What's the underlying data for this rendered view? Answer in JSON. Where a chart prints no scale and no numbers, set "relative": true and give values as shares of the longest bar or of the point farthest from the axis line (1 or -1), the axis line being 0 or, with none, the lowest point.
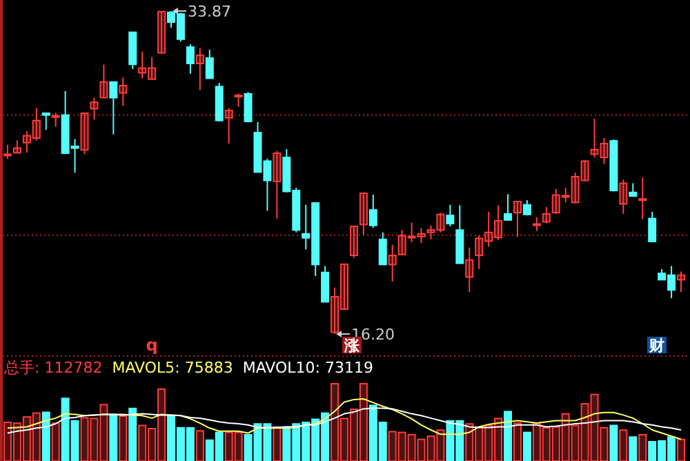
{
  "chart_data": [
    {
      "type": "candlestick",
      "categories": [
        null,
        null,
        null,
        null,
        null,
        null,
        null,
        null,
        null,
        null,
        null,
        null,
        null,
        null,
        null,
        null,
        null,
        null,
        null,
        null,
        null,
        null,
        null,
        null,
        null,
        null,
        null,
        null,
        null,
        null,
        null,
        null,
        null,
        null,
        null,
        null,
        null,
        null,
        null,
        null,
        null,
        null,
        null,
        null,
        null,
        null,
        null,
        null,
        null,
        null,
        null,
        null,
        null,
        null,
        null,
        null,
        null,
        null,
        null,
        null,
        null,
        null,
        null,
        null,
        null,
        null,
        null,
        null,
        null,
        null,
        null
      ],
      "ohlc": [
        [
          25.96,
          26.54,
          25.79,
          26.04
        ],
        [
          26.11,
          26.8,
          26.09,
          26.37
        ],
        [
          26.67,
          27.3,
          26.12,
          27.05
        ],
        [
          26.92,
          28.56,
          26.79,
          27.88
        ],
        [
          28.28,
          28.28,
          27.37,
          28.18
        ],
        [
          28.12,
          28.3,
          27.55,
          28.14
        ],
        [
          28.18,
          29.49,
          26.04,
          26.09
        ],
        [
          26.47,
          26.87,
          25.03,
          26.37
        ],
        [
          26.27,
          28.28,
          26.04,
          28.28
        ],
        [
          28.53,
          29.13,
          27.93,
          28.88
        ],
        [
          29.13,
          30.94,
          29.13,
          29.99
        ],
        [
          29.99,
          29.99,
          27.12,
          29.13
        ],
        [
          29.39,
          30.24,
          28.68,
          29.79
        ],
        [
          32.71,
          32.71,
          30.7,
          30.95
        ],
        [
          30.49,
          31.65,
          30.19,
          30.75
        ],
        [
          30.14,
          31.35,
          30.14,
          30.75
        ],
        [
          31.58,
          33.84,
          31.58,
          33.84
        ],
        [
          33.8,
          33.87,
          32.96,
          33.26
        ],
        [
          33.71,
          33.77,
          32.2,
          32.33
        ],
        [
          31.9,
          32.05,
          30.44,
          31.0
        ],
        [
          31.0,
          31.83,
          29.54,
          31.45
        ],
        [
          31.3,
          31.75,
          30.19,
          30.19
        ],
        [
          29.74,
          29.94,
          27.83,
          27.88
        ],
        [
          28.03,
          28.56,
          26.62,
          28.43
        ],
        [
          29.23,
          29.36,
          28.63,
          29.26
        ],
        [
          29.34,
          29.44,
          27.78,
          27.83
        ],
        [
          27.22,
          27.8,
          25.06,
          25.06
        ],
        [
          25.66,
          25.79,
          22.94,
          24.6
        ],
        [
          24.55,
          26.22,
          22.51,
          26.09
        ],
        [
          25.86,
          26.32,
          23.95,
          24.0
        ],
        [
          24.05,
          24.2,
          21.76,
          21.89
        ],
        [
          21.68,
          23.27,
          20.83,
          21.46
        ],
        [
          23.37,
          23.37,
          19.37,
          20.0
        ],
        [
          19.57,
          19.92,
          17.96,
          17.96
        ],
        [
          16.3,
          18.74,
          16.2,
          18.24
        ],
        [
          17.56,
          20.02,
          17.51,
          20.02
        ],
        [
          20.5,
          22.09,
          20.37,
          22.09
        ],
        [
          22.19,
          23.95,
          21.63,
          23.9
        ],
        [
          22.99,
          23.82,
          22.01,
          22.14
        ],
        [
          21.38,
          21.76,
          20.0,
          20.0
        ],
        [
          20.0,
          21.08,
          19.07,
          20.5
        ],
        [
          20.55,
          21.89,
          20.55,
          21.58
        ],
        [
          21.51,
          22.29,
          21.23,
          21.54
        ],
        [
          21.53,
          21.99,
          21.18,
          21.68
        ],
        [
          21.76,
          22.14,
          21.38,
          21.89
        ],
        [
          21.89,
          22.84,
          21.76,
          22.74
        ],
        [
          22.69,
          23.27,
          22.09,
          22.24
        ],
        [
          21.89,
          23.24,
          20.07,
          20.07
        ],
        [
          19.32,
          20.93,
          18.49,
          20.25
        ],
        [
          20.5,
          21.58,
          19.75,
          21.43
        ],
        [
          21.28,
          22.89,
          20.98,
          21.76
        ],
        [
          21.48,
          23.24,
          21.33,
          22.39
        ],
        [
          22.77,
          23.85,
          22.39,
          22.44
        ],
        [
          22.84,
          23.45,
          21.51,
          23.45
        ],
        [
          23.27,
          23.52,
          22.69,
          22.74
        ],
        [
          22.19,
          22.59,
          21.84,
          22.22
        ],
        [
          22.34,
          23.15,
          22.26,
          22.77
        ],
        [
          22.84,
          24.15,
          22.77,
          23.8
        ],
        [
          23.76,
          24.2,
          23.4,
          23.77
        ],
        [
          23.4,
          25.03,
          23.35,
          24.81
        ],
        [
          24.6,
          25.71,
          24.6,
          25.66
        ],
        [
          26.04,
          27.98,
          25.86,
          26.29
        ],
        [
          25.86,
          26.92,
          25.51,
          26.62
        ],
        [
          26.77,
          26.85,
          24.0,
          24.05
        ],
        [
          23.32,
          24.65,
          22.77,
          24.45
        ],
        [
          23.95,
          24.45,
          23.7,
          23.75
        ],
        [
          23.57,
          24.76,
          22.49,
          23.59
        ],
        [
          22.52,
          22.89,
          21.26,
          21.26
        ],
        [
          19.52,
          19.75,
          19.17,
          19.17
        ],
        [
          19.42,
          19.92,
          18.16,
          18.61
        ],
        [
          19.17,
          19.62,
          18.49,
          19.42
        ]
      ],
      "colors": [
        "#ff3c3c",
        "#ff3c3c",
        "#ff3c3c",
        "#ff3c3c",
        "#54fcfc",
        "#ff3c3c",
        "#54fcfc",
        "#54fcfc",
        "#ff3c3c",
        "#ff3c3c",
        "#ff3c3c",
        "#54fcfc",
        "#ff3c3c",
        "#54fcfc",
        "#ff3c3c",
        "#ff3c3c",
        "#ff3c3c",
        "#54fcfc",
        "#54fcfc",
        "#54fcfc",
        "#ff3c3c",
        "#54fcfc",
        "#54fcfc",
        "#ff3c3c",
        "#ff3c3c",
        "#54fcfc",
        "#54fcfc",
        "#54fcfc",
        "#ff3c3c",
        "#54fcfc",
        "#54fcfc",
        "#54fcfc",
        "#54fcfc",
        "#54fcfc",
        "#ff3c3c",
        "#ff3c3c",
        "#ff3c3c",
        "#ff3c3c",
        "#54fcfc",
        "#54fcfc",
        "#ff3c3c",
        "#ff3c3c",
        "#ff3c3c",
        "#ff3c3c",
        "#ff3c3c",
        "#ff3c3c",
        "#54fcfc",
        "#54fcfc",
        "#ff3c3c",
        "#ff3c3c",
        "#ff3c3c",
        "#ff3c3c",
        "#54fcfc",
        "#ff3c3c",
        "#54fcfc",
        "#ff3c3c",
        "#ff3c3c",
        "#ff3c3c",
        "#ff3c3c",
        "#ff3c3c",
        "#ff3c3c",
        "#ff3c3c",
        "#ff3c3c",
        "#54fcfc",
        "#ff3c3c",
        "#54fcfc",
        "#ff3c3c",
        "#54fcfc",
        "#54fcfc",
        "#54fcfc",
        "#ff3c3c"
      ],
      "ref_lines": [
        {
          "axis": "y",
          "value": 28.18,
          "color": "#b02020",
          "line_style": "dotted"
        },
        {
          "axis": "y",
          "value": 21.61,
          "color": "#b02020",
          "line_style": "dotted"
        }
      ],
      "annotations": [
        "33.87",
        "16.20",
        "q",
        "涨",
        "财"
      ]
    },
    {
      "type": "bar",
      "relative": true,
      "categories": [
        null,
        null,
        null,
        null,
        null,
        null,
        null,
        null,
        null,
        null,
        null,
        null,
        null,
        null,
        null,
        null,
        null,
        null,
        null,
        null,
        null,
        null,
        null,
        null,
        null,
        null,
        null,
        null,
        null,
        null,
        null,
        null,
        null,
        null,
        null,
        null,
        null,
        null,
        null,
        null,
        null,
        null,
        null,
        null,
        null,
        null,
        null,
        null,
        null,
        null,
        null,
        null,
        null,
        null,
        null,
        null,
        null,
        null,
        null,
        null,
        null,
        null,
        null,
        null,
        null,
        null,
        null,
        null,
        null,
        null,
        null
      ],
      "series": [
        {
          "name": "总手: 112782",
          "type": "bar",
          "color": "#ff3c3c",
          "colors": [
            "#ff3c3c",
            "#ff3c3c",
            "#ff3c3c",
            "#ff3c3c",
            "#54fcfc",
            "#ff3c3c",
            "#54fcfc",
            "#54fcfc",
            "#ff3c3c",
            "#ff3c3c",
            "#ff3c3c",
            "#54fcfc",
            "#ff3c3c",
            "#54fcfc",
            "#ff3c3c",
            "#ff3c3c",
            "#ff3c3c",
            "#54fcfc",
            "#54fcfc",
            "#54fcfc",
            "#ff3c3c",
            "#54fcfc",
            "#54fcfc",
            "#ff3c3c",
            "#ff3c3c",
            "#54fcfc",
            "#54fcfc",
            "#54fcfc",
            "#ff3c3c",
            "#54fcfc",
            "#54fcfc",
            "#54fcfc",
            "#54fcfc",
            "#54fcfc",
            "#ff3c3c",
            "#ff3c3c",
            "#ff3c3c",
            "#ff3c3c",
            "#54fcfc",
            "#54fcfc",
            "#ff3c3c",
            "#ff3c3c",
            "#ff3c3c",
            "#ff3c3c",
            "#ff3c3c",
            "#ff3c3c",
            "#54fcfc",
            "#54fcfc",
            "#ff3c3c",
            "#ff3c3c",
            "#ff3c3c",
            "#ff3c3c",
            "#54fcfc",
            "#ff3c3c",
            "#54fcfc",
            "#ff3c3c",
            "#ff3c3c",
            "#ff3c3c",
            "#ff3c3c",
            "#ff3c3c",
            "#ff3c3c",
            "#ff3c3c",
            "#ff3c3c",
            "#54fcfc",
            "#ff3c3c",
            "#54fcfc",
            "#ff3c3c",
            "#54fcfc",
            "#54fcfc",
            "#54fcfc",
            "#ff3c3c"
          ],
          "values": [
            0.5,
            0.49,
            0.57,
            0.62,
            0.63,
            0.49,
            0.81,
            0.52,
            0.56,
            0.55,
            0.73,
            0.6,
            0.58,
            0.68,
            0.46,
            0.42,
            0.93,
            0.58,
            0.43,
            0.43,
            0.39,
            0.27,
            0.37,
            0.37,
            0.37,
            0.34,
            0.48,
            0.48,
            0.44,
            0.44,
            0.48,
            0.5,
            0.54,
            0.62,
            1.0,
            0.55,
            0.67,
            1.0,
            0.72,
            0.5,
            0.38,
            0.37,
            0.34,
            0.28,
            0.32,
            0.4,
            0.52,
            0.52,
            0.48,
            0.44,
            0.46,
            0.55,
            0.64,
            0.49,
            0.37,
            0.49,
            0.43,
            0.44,
            0.61,
            0.46,
            0.74,
            0.86,
            0.43,
            0.46,
            0.4,
            0.31,
            0.34,
            0.25,
            0.26,
            0.31,
            0.28
          ]
        }
      ]
    },
    {
      "type": "line",
      "relative": true,
      "categories": [
        null,
        null,
        null,
        null,
        null,
        null,
        null,
        null,
        null,
        null,
        null,
        null,
        null,
        null,
        null,
        null,
        null,
        null,
        null,
        null,
        null,
        null,
        null,
        null,
        null,
        null,
        null,
        null,
        null,
        null,
        null,
        null,
        null,
        null,
        null,
        null,
        null,
        null,
        null,
        null,
        null,
        null,
        null,
        null,
        null,
        null,
        null,
        null,
        null,
        null,
        null,
        null,
        null,
        null,
        null,
        null,
        null,
        null,
        null,
        null,
        null,
        null,
        null,
        null,
        null,
        null,
        null,
        null,
        null,
        null,
        null
      ],
      "series": [
        {
          "name": "MAVOL5: 75883",
          "color": "#ffff66",
          "values": [
            0.53,
            0.54,
            0.55,
            0.6,
            0.65,
            0.69,
            0.76,
            0.75,
            0.73,
            0.74,
            0.75,
            0.75,
            0.75,
            0.74,
            0.73,
            0.69,
            0.75,
            0.74,
            0.73,
            0.68,
            0.61,
            0.53,
            0.48,
            0.48,
            0.48,
            0.45,
            0.53,
            0.53,
            0.53,
            0.53,
            0.54,
            0.58,
            0.6,
            0.68,
            0.8,
            0.95,
            0.99,
            1.0,
            0.94,
            0.88,
            0.83,
            0.76,
            0.68,
            0.58,
            0.5,
            0.43,
            0.43,
            0.43,
            0.46,
            0.55,
            0.59,
            0.61,
            0.63,
            0.65,
            0.63,
            0.61,
            0.63,
            0.65,
            0.65,
            0.65,
            0.7,
            0.76,
            0.78,
            0.78,
            0.74,
            0.69,
            0.6,
            0.5,
            0.45,
            0.4,
            0.35
          ]
        },
        {
          "name": "MAVOL10: 73119",
          "color": "#ffffff",
          "values": [
            0.45,
            0.48,
            0.5,
            0.53,
            0.55,
            0.6,
            0.69,
            0.7,
            0.73,
            0.74,
            0.75,
            0.75,
            0.74,
            0.75,
            0.76,
            0.75,
            0.74,
            0.74,
            0.73,
            0.7,
            0.69,
            0.66,
            0.63,
            0.61,
            0.6,
            0.58,
            0.54,
            0.54,
            0.54,
            0.55,
            0.55,
            0.58,
            0.58,
            0.63,
            0.69,
            0.76,
            0.79,
            0.84,
            0.85,
            0.85,
            0.84,
            0.8,
            0.76,
            0.73,
            0.69,
            0.65,
            0.61,
            0.59,
            0.55,
            0.54,
            0.54,
            0.55,
            0.55,
            0.58,
            0.58,
            0.58,
            0.55,
            0.56,
            0.58,
            0.6,
            0.61,
            0.63,
            0.65,
            0.65,
            0.65,
            0.63,
            0.6,
            0.58,
            0.55,
            0.53,
            0.5
          ]
        }
      ]
    }
  ]
}
